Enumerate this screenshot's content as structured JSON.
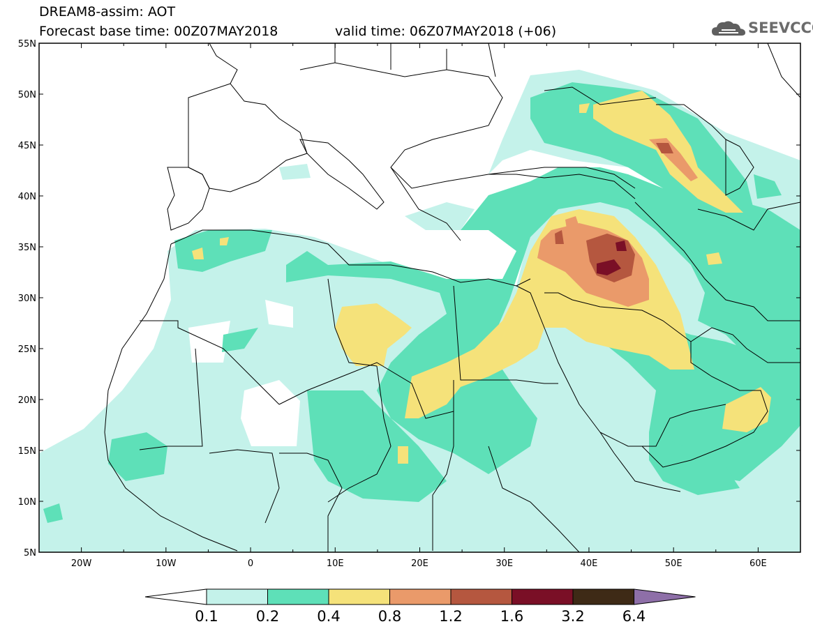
{
  "header": {
    "title": "DREAM8-assim: AOT",
    "base_time": "Forecast base time: 00Z07MAY2018",
    "valid_time": "valid time: 06Z07MAY2018 (+06)",
    "logo_text": "SEEVCCC",
    "logo_icon": "cloud-icon"
  },
  "map": {
    "lon_range": [
      -25,
      65
    ],
    "lat_range": [
      5,
      55
    ],
    "lat_labels": [
      "55N",
      "50N",
      "45N",
      "40N",
      "35N",
      "30N",
      "25N",
      "20N",
      "15N",
      "10N",
      "5N"
    ],
    "lon_labels": [
      "20W",
      "10W",
      "0",
      "10E",
      "20E",
      "30E",
      "40E",
      "50E",
      "60E"
    ]
  },
  "colorbar": {
    "labels": [
      "0.1",
      "0.2",
      "0.4",
      "0.8",
      "1.2",
      "1.6",
      "3.2",
      "6.4"
    ],
    "colors": [
      "#ffffff",
      "#c4f2ea",
      "#5ee0b8",
      "#f5e27a",
      "#ea9a6a",
      "#b5573f",
      "#7a0f26",
      "#3e2a16",
      "#8e6fa8"
    ]
  }
}
